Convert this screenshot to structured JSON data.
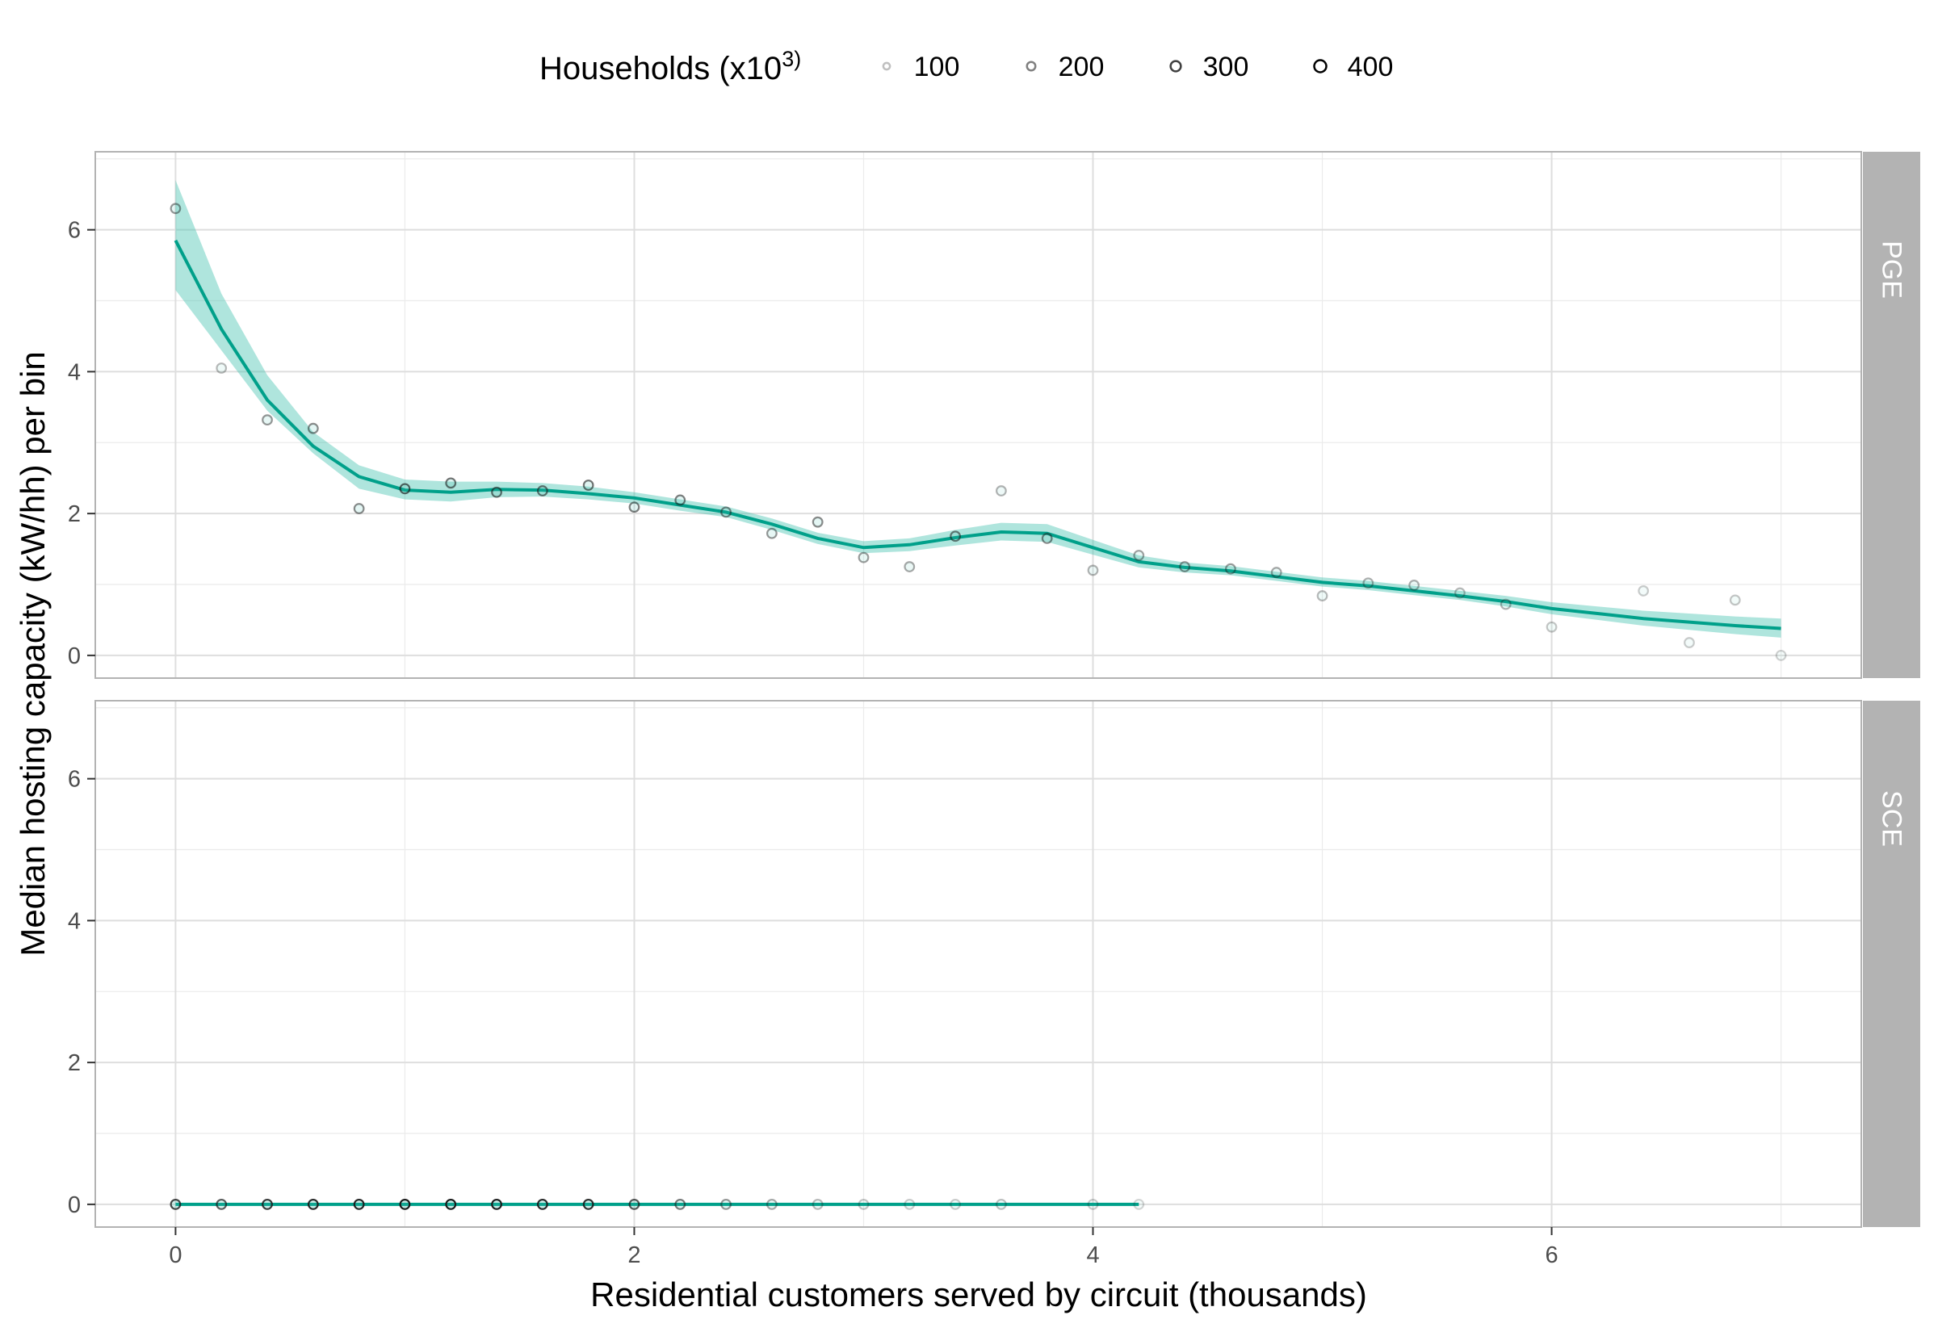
{
  "chart_data": {
    "type": "scatter",
    "xlabel": "Residential customers served by circuit (thousands)",
    "ylabel": "Median hosting capacity (kW/hh) per bin",
    "xlim": [
      -0.35,
      7.35
    ],
    "ylim": [
      -0.32,
      7.1
    ],
    "x_ticks": [
      0,
      2,
      4,
      6
    ],
    "y_ticks": [
      0,
      2,
      4,
      6
    ],
    "grid": true,
    "line_color": "#00a08a",
    "band_color": "#40c0ae",
    "legend": {
      "title_prefix": "Households (x10",
      "title_sup": "3)",
      "placement": "top",
      "entries": [
        {
          "label": "100",
          "households": 100
        },
        {
          "label": "200",
          "households": 200
        },
        {
          "label": "300",
          "households": 300
        },
        {
          "label": "400",
          "households": 400
        }
      ]
    },
    "panels": [
      {
        "name": "PGE",
        "points": [
          {
            "x": 0.0,
            "y": 6.3,
            "hh": 180
          },
          {
            "x": 0.2,
            "y": 4.05,
            "hh": 120
          },
          {
            "x": 0.4,
            "y": 3.32,
            "hh": 180
          },
          {
            "x": 0.6,
            "y": 3.2,
            "hh": 200
          },
          {
            "x": 0.8,
            "y": 2.07,
            "hh": 200
          },
          {
            "x": 1.0,
            "y": 2.35,
            "hh": 260
          },
          {
            "x": 1.2,
            "y": 2.43,
            "hh": 240
          },
          {
            "x": 1.4,
            "y": 2.3,
            "hh": 240
          },
          {
            "x": 1.6,
            "y": 2.32,
            "hh": 230
          },
          {
            "x": 1.8,
            "y": 2.4,
            "hh": 240
          },
          {
            "x": 2.0,
            "y": 2.09,
            "hh": 220
          },
          {
            "x": 2.2,
            "y": 2.19,
            "hh": 220
          },
          {
            "x": 2.4,
            "y": 2.02,
            "hh": 200
          },
          {
            "x": 2.6,
            "y": 1.72,
            "hh": 180
          },
          {
            "x": 2.8,
            "y": 1.88,
            "hh": 200
          },
          {
            "x": 3.0,
            "y": 1.38,
            "hh": 170
          },
          {
            "x": 3.2,
            "y": 1.25,
            "hh": 150
          },
          {
            "x": 3.4,
            "y": 1.68,
            "hh": 220
          },
          {
            "x": 3.6,
            "y": 2.32,
            "hh": 130
          },
          {
            "x": 3.8,
            "y": 1.65,
            "hh": 200
          },
          {
            "x": 4.0,
            "y": 1.2,
            "hh": 130
          },
          {
            "x": 4.2,
            "y": 1.41,
            "hh": 160
          },
          {
            "x": 4.4,
            "y": 1.25,
            "hh": 180
          },
          {
            "x": 4.6,
            "y": 1.22,
            "hh": 170
          },
          {
            "x": 4.8,
            "y": 1.17,
            "hh": 150
          },
          {
            "x": 5.0,
            "y": 0.84,
            "hh": 120
          },
          {
            "x": 5.2,
            "y": 1.02,
            "hh": 140
          },
          {
            "x": 5.4,
            "y": 0.99,
            "hh": 140
          },
          {
            "x": 5.6,
            "y": 0.88,
            "hh": 120
          },
          {
            "x": 5.8,
            "y": 0.72,
            "hh": 130
          },
          {
            "x": 6.0,
            "y": 0.4,
            "hh": 100
          },
          {
            "x": 6.4,
            "y": 0.91,
            "hh": 90
          },
          {
            "x": 6.6,
            "y": 0.18,
            "hh": 90
          },
          {
            "x": 6.8,
            "y": 0.78,
            "hh": 100
          },
          {
            "x": 7.0,
            "y": 0.0,
            "hh": 80
          }
        ],
        "smooth": [
          {
            "x": 0.0,
            "y": 5.85,
            "lo": 5.15,
            "hi": 6.7
          },
          {
            "x": 0.2,
            "y": 4.6,
            "lo": 4.3,
            "hi": 5.1
          },
          {
            "x": 0.4,
            "y": 3.6,
            "lo": 3.45,
            "hi": 3.95
          },
          {
            "x": 0.6,
            "y": 2.95,
            "lo": 2.85,
            "hi": 3.15
          },
          {
            "x": 0.8,
            "y": 2.52,
            "lo": 2.35,
            "hi": 2.68
          },
          {
            "x": 1.0,
            "y": 2.33,
            "lo": 2.2,
            "hi": 2.48
          },
          {
            "x": 1.2,
            "y": 2.3,
            "lo": 2.17,
            "hi": 2.45
          },
          {
            "x": 1.4,
            "y": 2.34,
            "lo": 2.23,
            "hi": 2.45
          },
          {
            "x": 1.6,
            "y": 2.33,
            "lo": 2.24,
            "hi": 2.43
          },
          {
            "x": 1.8,
            "y": 2.28,
            "lo": 2.2,
            "hi": 2.38
          },
          {
            "x": 2.0,
            "y": 2.22,
            "lo": 2.14,
            "hi": 2.3
          },
          {
            "x": 2.2,
            "y": 2.12,
            "lo": 2.04,
            "hi": 2.2
          },
          {
            "x": 2.4,
            "y": 2.02,
            "lo": 1.95,
            "hi": 2.1
          },
          {
            "x": 2.6,
            "y": 1.85,
            "lo": 1.77,
            "hi": 1.93
          },
          {
            "x": 2.8,
            "y": 1.65,
            "lo": 1.57,
            "hi": 1.73
          },
          {
            "x": 3.0,
            "y": 1.52,
            "lo": 1.44,
            "hi": 1.61
          },
          {
            "x": 3.2,
            "y": 1.56,
            "lo": 1.47,
            "hi": 1.65
          },
          {
            "x": 3.4,
            "y": 1.66,
            "lo": 1.55,
            "hi": 1.77
          },
          {
            "x": 3.6,
            "y": 1.74,
            "lo": 1.62,
            "hi": 1.87
          },
          {
            "x": 3.8,
            "y": 1.72,
            "lo": 1.6,
            "hi": 1.85
          },
          {
            "x": 4.0,
            "y": 1.52,
            "lo": 1.42,
            "hi": 1.63
          },
          {
            "x": 4.2,
            "y": 1.32,
            "lo": 1.24,
            "hi": 1.41
          },
          {
            "x": 4.4,
            "y": 1.24,
            "lo": 1.17,
            "hi": 1.31
          },
          {
            "x": 4.6,
            "y": 1.19,
            "lo": 1.13,
            "hi": 1.26
          },
          {
            "x": 4.8,
            "y": 1.11,
            "lo": 1.05,
            "hi": 1.18
          },
          {
            "x": 5.0,
            "y": 1.03,
            "lo": 0.97,
            "hi": 1.1
          },
          {
            "x": 5.2,
            "y": 0.98,
            "lo": 0.92,
            "hi": 1.05
          },
          {
            "x": 5.4,
            "y": 0.91,
            "lo": 0.85,
            "hi": 0.98
          },
          {
            "x": 5.6,
            "y": 0.84,
            "lo": 0.78,
            "hi": 0.91
          },
          {
            "x": 5.8,
            "y": 0.76,
            "lo": 0.69,
            "hi": 0.84
          },
          {
            "x": 6.0,
            "y": 0.66,
            "lo": 0.58,
            "hi": 0.75
          },
          {
            "x": 6.2,
            "y": 0.59,
            "lo": 0.5,
            "hi": 0.69
          },
          {
            "x": 6.4,
            "y": 0.52,
            "lo": 0.42,
            "hi": 0.63
          },
          {
            "x": 6.6,
            "y": 0.47,
            "lo": 0.36,
            "hi": 0.59
          },
          {
            "x": 6.8,
            "y": 0.42,
            "lo": 0.3,
            "hi": 0.55
          },
          {
            "x": 7.0,
            "y": 0.38,
            "lo": 0.25,
            "hi": 0.52
          }
        ]
      },
      {
        "name": "SCE",
        "points": [
          {
            "x": 0.0,
            "y": 0,
            "hh": 320
          },
          {
            "x": 0.2,
            "y": 0,
            "hh": 280
          },
          {
            "x": 0.4,
            "y": 0,
            "hh": 340
          },
          {
            "x": 0.6,
            "y": 0,
            "hh": 370
          },
          {
            "x": 0.8,
            "y": 0,
            "hh": 380
          },
          {
            "x": 1.0,
            "y": 0,
            "hh": 400
          },
          {
            "x": 1.2,
            "y": 0,
            "hh": 400
          },
          {
            "x": 1.4,
            "y": 0,
            "hh": 390
          },
          {
            "x": 1.6,
            "y": 0,
            "hh": 370
          },
          {
            "x": 1.8,
            "y": 0,
            "hh": 360
          },
          {
            "x": 2.0,
            "y": 0,
            "hh": 290
          },
          {
            "x": 2.2,
            "y": 0,
            "hh": 230
          },
          {
            "x": 2.4,
            "y": 0,
            "hh": 180
          },
          {
            "x": 2.6,
            "y": 0,
            "hh": 150
          },
          {
            "x": 2.8,
            "y": 0,
            "hh": 120
          },
          {
            "x": 3.0,
            "y": 0,
            "hh": 100
          },
          {
            "x": 3.2,
            "y": 0,
            "hh": 90
          },
          {
            "x": 3.4,
            "y": 0,
            "hh": 90
          },
          {
            "x": 3.6,
            "y": 0,
            "hh": 110
          },
          {
            "x": 4.0,
            "y": 0,
            "hh": 90
          },
          {
            "x": 4.2,
            "y": 0,
            "hh": 70
          }
        ],
        "smooth": [
          {
            "x": 0.0,
            "y": 0,
            "lo": 0,
            "hi": 0
          },
          {
            "x": 4.2,
            "y": 0,
            "lo": 0,
            "hi": 0
          }
        ]
      }
    ]
  }
}
